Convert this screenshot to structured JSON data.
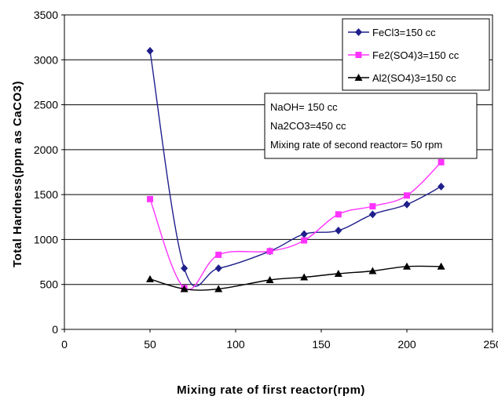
{
  "chart_data": {
    "type": "line",
    "title": "",
    "xlabel": "Mixing rate of first reactor(rpm)",
    "ylabel": "Total Hardness(ppm as CaCO3)",
    "xlim": [
      0,
      250
    ],
    "ylim": [
      0,
      3500
    ],
    "x_ticks": [
      0,
      50,
      100,
      150,
      200,
      250
    ],
    "y_ticks": [
      0,
      500,
      1000,
      1500,
      2000,
      2500,
      3000,
      3500
    ],
    "grid": "horizontal",
    "legend_position": "top-right",
    "series": [
      {
        "name": "FeCl3=150 cc",
        "color": "#1f1f8c",
        "marker": "diamond",
        "x": [
          50,
          70,
          90,
          120,
          140,
          160,
          180,
          200,
          220
        ],
        "y": [
          3100,
          680,
          680,
          870,
          1060,
          1100,
          1280,
          1390,
          1590
        ]
      },
      {
        "name": "Fe2(SO4)3=150 cc",
        "color": "#ff33ff",
        "marker": "square",
        "x": [
          50,
          70,
          90,
          120,
          140,
          160,
          180,
          200,
          220
        ],
        "y": [
          1450,
          460,
          830,
          870,
          990,
          1280,
          1370,
          1490,
          1860
        ]
      },
      {
        "name": "Al2(SO4)3=150 cc",
        "color": "#000000",
        "marker": "triangle",
        "x": [
          50,
          70,
          90,
          120,
          140,
          160,
          180,
          200,
          220
        ],
        "y": [
          560,
          450,
          450,
          550,
          580,
          620,
          650,
          700,
          700
        ]
      }
    ],
    "annotations": [
      "NaOH= 150 cc",
      "Na2CO3=450 cc",
      "Mixing rate of second reactor= 50 rpm"
    ]
  }
}
